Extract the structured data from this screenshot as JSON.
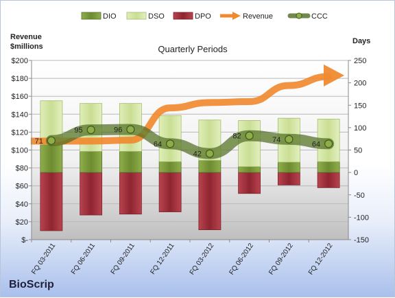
{
  "company": "BioScrip",
  "colors": {
    "dio": "#7a9a3a",
    "dso": "#d4e6a8",
    "dpo": "#a8323e",
    "revenue": "#f08a30",
    "ccc": "#5a7a2a"
  },
  "chart_data": {
    "type": "bar",
    "title": "Quarterly Periods",
    "ylabel_left": "Revenue\n$millions",
    "ylabel_right": "Days",
    "categories": [
      "FQ 03-2011",
      "FQ 06-2011",
      "FQ 09-2011",
      "FQ 12-2011",
      "FQ 03-2012",
      "FQ 06-2012",
      "FQ 09-2012",
      "FQ 12-2012"
    ],
    "legend": [
      "DIO",
      "DSO",
      "DPO",
      "Revenue",
      "CCC"
    ],
    "legend_position": "top",
    "left_axis": {
      "min": 0,
      "max": 200,
      "step": 20,
      "tick_labels": [
        "$-",
        "$20",
        "$40",
        "$60",
        "$80",
        "$100",
        "$120",
        "$140",
        "$160",
        "$180",
        "$200"
      ]
    },
    "right_axis": {
      "min": -150,
      "max": 250,
      "step": 50,
      "tick_labels": [
        "-150",
        "-100",
        "-50",
        "0",
        "50",
        "100",
        "150",
        "200",
        "250"
      ]
    },
    "series": [
      {
        "name": "DIO",
        "axis": "right",
        "values": [
          62,
          47,
          47,
          24,
          27,
          13,
          23,
          24
        ]
      },
      {
        "name": "DSO",
        "axis": "right",
        "values": [
          98,
          107,
          107,
          103,
          90,
          103,
          98,
          95
        ]
      },
      {
        "name": "DPO",
        "axis": "right",
        "values": [
          -130,
          -95,
          -93,
          -88,
          -128,
          -47,
          -28,
          -34
        ]
      },
      {
        "name": "Revenue",
        "axis": "left",
        "values": [
          110,
          110,
          111,
          147,
          153,
          154,
          172,
          182
        ],
        "arrow_to": 184
      },
      {
        "name": "CCC",
        "axis": "right",
        "values": [
          71,
          95,
          96,
          64,
          42,
          82,
          74,
          64
        ],
        "labels": [
          "71",
          "95",
          "96",
          "64",
          "42",
          "82",
          "74",
          "64"
        ]
      }
    ],
    "grid": true
  }
}
